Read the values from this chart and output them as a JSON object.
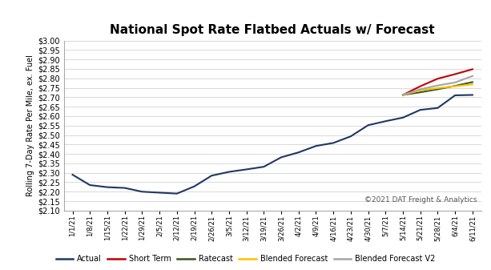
{
  "title": "National Spot Rate Flatbed Actuals w/ Forecast",
  "ylabel": "Rolling 7-Day Rate Per Mile, ex. Fuel",
  "copyright": "©2021 DAT Freight & Analytics",
  "ylim": [
    2.1,
    3.0
  ],
  "yticks": [
    2.1,
    2.15,
    2.2,
    2.25,
    2.3,
    2.35,
    2.4,
    2.45,
    2.5,
    2.55,
    2.6,
    2.65,
    2.7,
    2.75,
    2.8,
    2.85,
    2.9,
    2.95,
    3.0
  ],
  "xtick_labels": [
    "1/1/21",
    "1/8/21",
    "1/15/21",
    "1/22/21",
    "1/29/21",
    "2/5/21",
    "2/12/21",
    "2/19/21",
    "2/26/21",
    "3/5/21",
    "3/12/21",
    "3/19/21",
    "3/26/21",
    "4/2/21",
    "4/9/21",
    "4/16/21",
    "4/23/21",
    "4/30/21",
    "5/7/21",
    "5/14/21",
    "5/21/21",
    "5/28/21",
    "6/4/21",
    "6/11/21"
  ],
  "actual_x": [
    0,
    1,
    2,
    3,
    4,
    5,
    6,
    7,
    8,
    9,
    10,
    11,
    12,
    13,
    14,
    15,
    16,
    17,
    18,
    19,
    20,
    21,
    22,
    23
  ],
  "actual_y": [
    2.29,
    2.235,
    2.224,
    2.22,
    2.2,
    2.195,
    2.19,
    2.228,
    2.285,
    2.305,
    2.318,
    2.332,
    2.382,
    2.408,
    2.442,
    2.458,
    2.493,
    2.552,
    2.573,
    2.592,
    2.633,
    2.643,
    2.71,
    2.712
  ],
  "short_term_x": [
    19,
    20,
    21,
    22,
    23
  ],
  "short_term_y": [
    2.712,
    2.758,
    2.798,
    2.822,
    2.848
  ],
  "ratecast_x": [
    19,
    20,
    21,
    22,
    23
  ],
  "ratecast_y": [
    2.712,
    2.726,
    2.742,
    2.76,
    2.78
  ],
  "blended_x": [
    19,
    20,
    21,
    22,
    23
  ],
  "blended_y": [
    2.712,
    2.736,
    2.748,
    2.758,
    2.768
  ],
  "blended_v2_x": [
    19,
    20,
    21,
    22,
    23
  ],
  "blended_v2_y": [
    2.712,
    2.742,
    2.762,
    2.778,
    2.812
  ],
  "actual_color": "#1f3864",
  "short_term_color": "#c00000",
  "ratecast_color": "#375623",
  "blended_color": "#ffc000",
  "blended_v2_color": "#a5a5a5",
  "bg_color": "#ffffff",
  "grid_color": "#d3d3d3",
  "legend_labels": [
    "Actual",
    "Short Term",
    "Ratecast",
    "Blended Forecast",
    "Blended Forecast V2"
  ]
}
